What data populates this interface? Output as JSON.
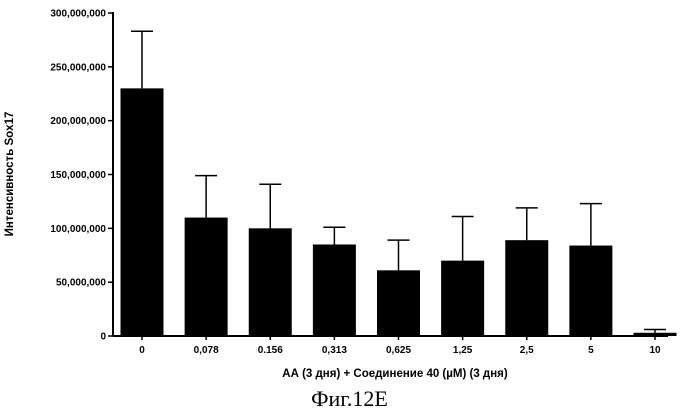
{
  "chart_data": {
    "type": "bar",
    "title": "",
    "xlabel": "АА (3 дня) + Соединение 40 (µM) (3 дня)",
    "ylabel": "Интенсивность Sox17",
    "categories": [
      "0",
      "0,078",
      "0.156",
      "0,313",
      "0,625",
      "1,25",
      "2,5",
      "5",
      "10"
    ],
    "values": [
      230000000,
      110000000,
      100000000,
      85000000,
      61000000,
      70000000,
      89000000,
      84000000,
      3000000
    ],
    "error_upper": [
      283000000,
      149000000,
      141000000,
      101000000,
      89000000,
      111000000,
      119000000,
      123000000,
      6000000
    ],
    "ylim": [
      0,
      300000000
    ],
    "yticks": [
      0,
      50000000,
      100000000,
      150000000,
      200000000,
      250000000,
      300000000
    ],
    "ytick_labels": [
      "0",
      "50,000,000",
      "100,000,000",
      "150,000,000",
      "200,000,000",
      "250,000,000",
      "300,000,000"
    ],
    "bar_color": "#000000",
    "grid": false,
    "legend": "none"
  },
  "caption": "Фиг.12E"
}
